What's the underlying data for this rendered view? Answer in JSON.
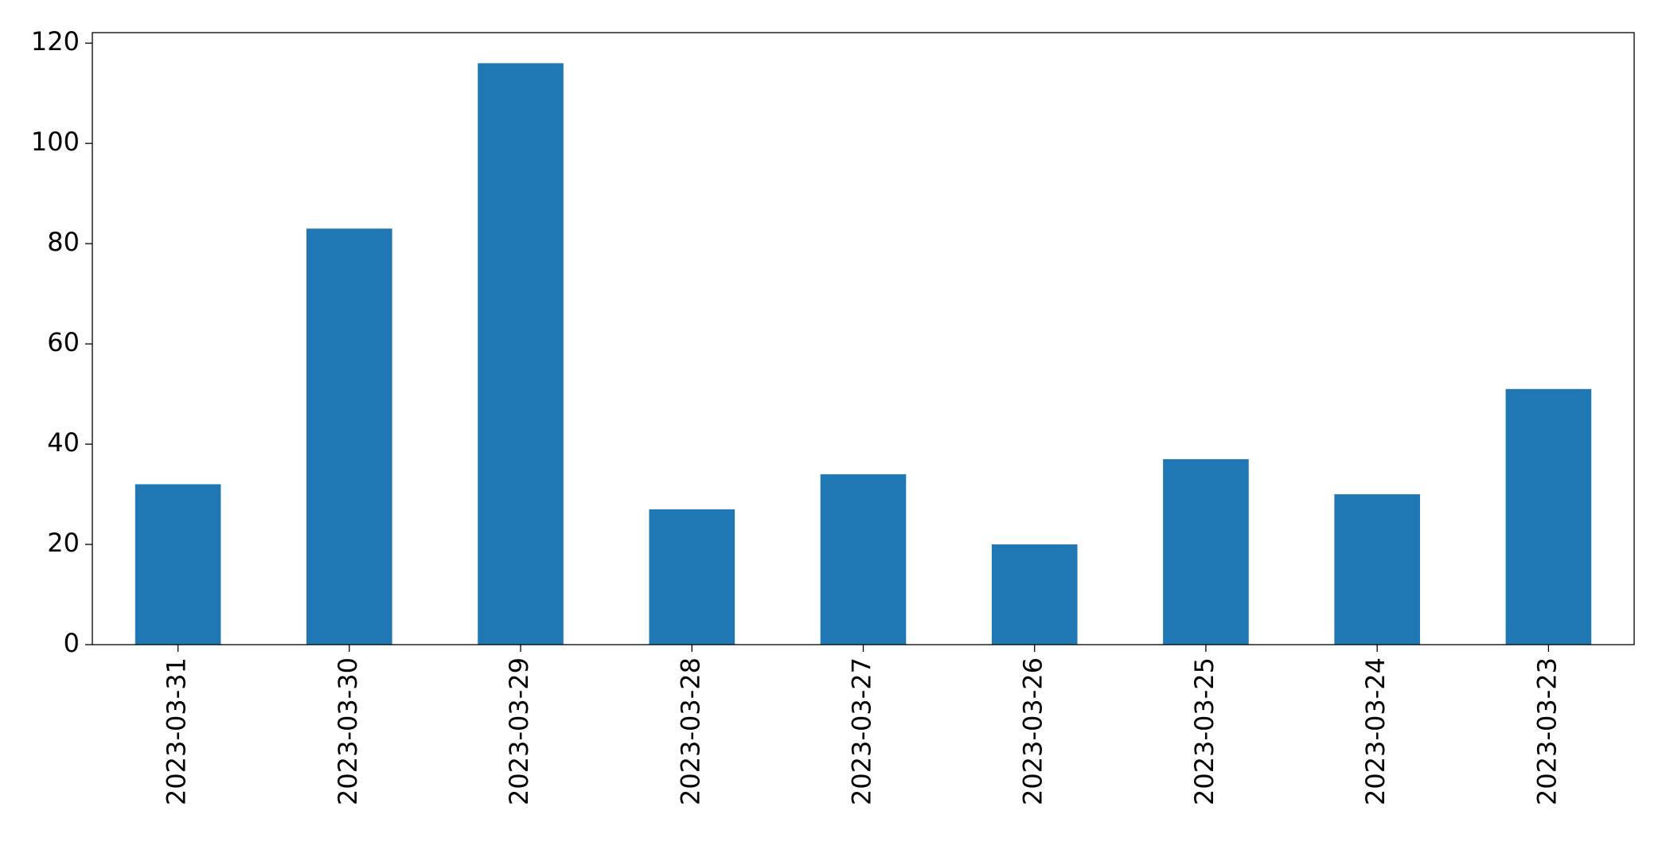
{
  "chart_data": {
    "type": "bar",
    "categories": [
      "2023-03-31",
      "2023-03-30",
      "2023-03-29",
      "2023-03-28",
      "2023-03-27",
      "2023-03-26",
      "2023-03-25",
      "2023-03-24",
      "2023-03-23"
    ],
    "values": [
      32,
      83,
      116,
      27,
      34,
      20,
      37,
      30,
      51
    ],
    "color": "#1f77b4",
    "ylim": [
      0,
      122.1
    ],
    "yticks": [
      0,
      20,
      40,
      60,
      80,
      100,
      120
    ],
    "grid": false
  }
}
